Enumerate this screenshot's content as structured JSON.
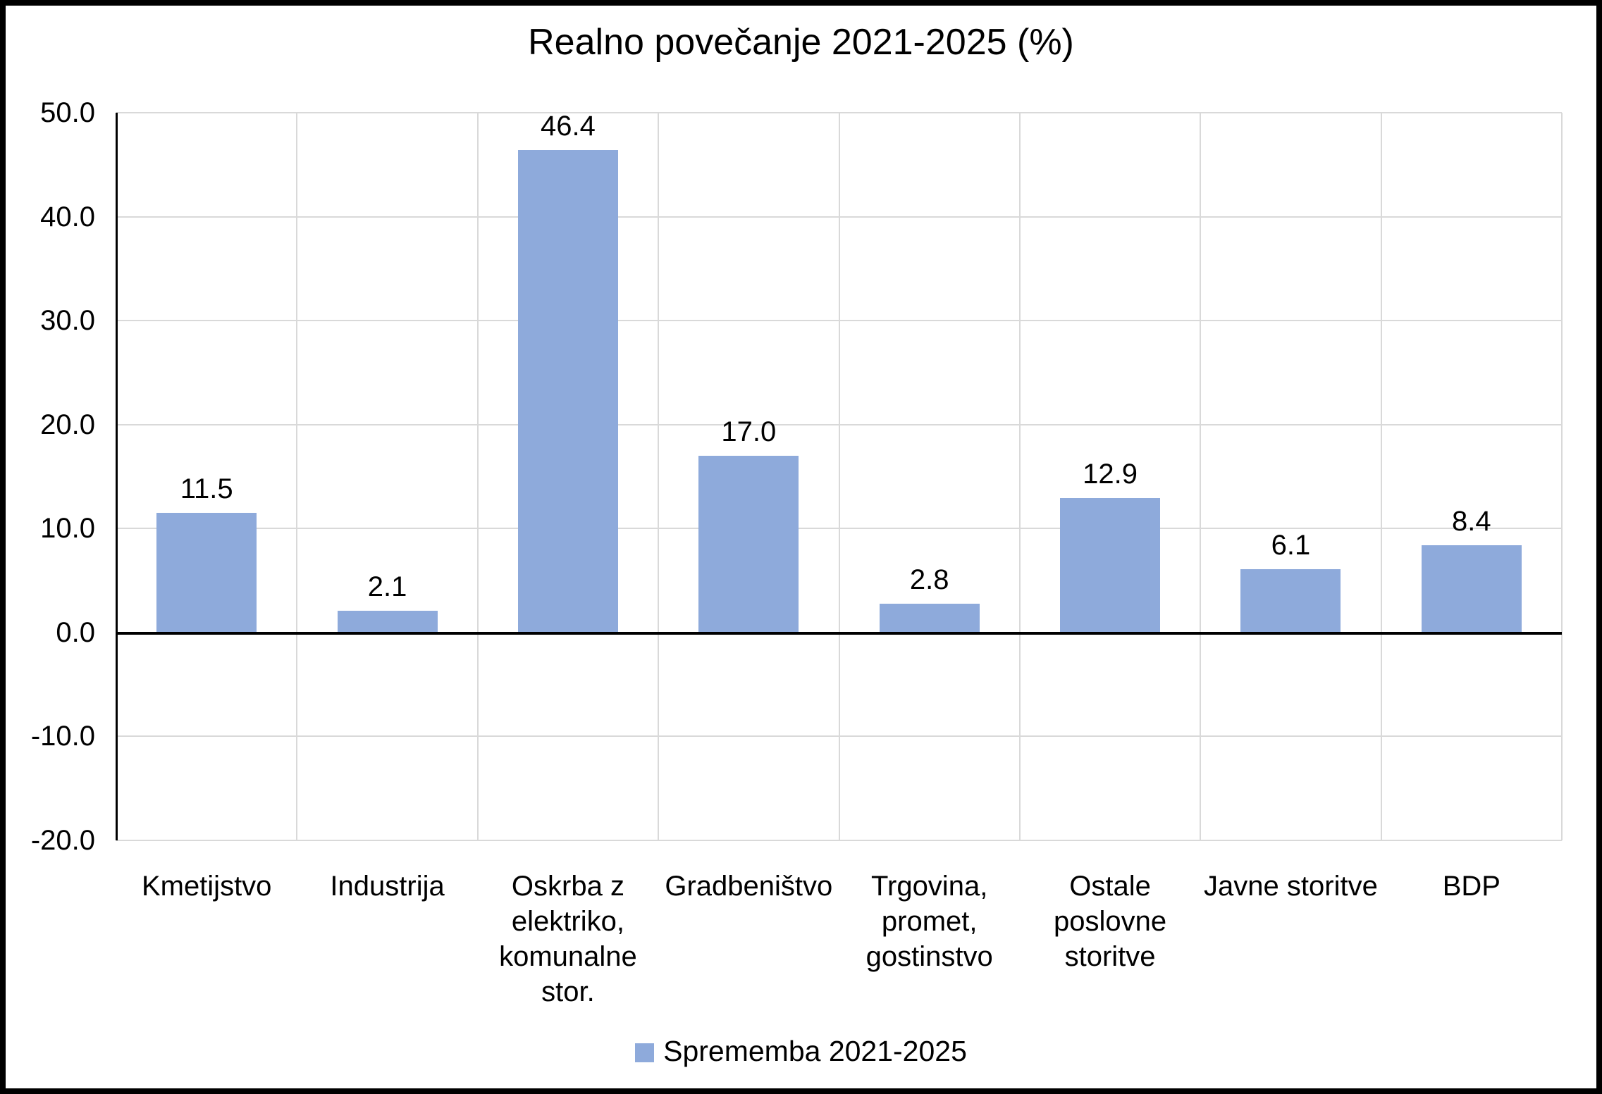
{
  "chart_data": {
    "type": "bar",
    "title": "Realno povečanje 2021-2025 (%)",
    "categories": [
      "Kmetijstvo",
      "Industrija",
      "Oskrba z elektriko, komunalne stor.",
      "Gradbeništvo",
      "Trgovina, promet, gostinstvo",
      "Ostale poslovne storitve",
      "Javne storitve",
      "BDP"
    ],
    "category_label_lines": [
      [
        "Kmetijstvo"
      ],
      [
        "Industrija"
      ],
      [
        "Oskrba z",
        "elektriko,",
        "komunalne",
        "stor."
      ],
      [
        "Gradbeništvo"
      ],
      [
        "Trgovina,",
        "promet,",
        "gostinstvo"
      ],
      [
        "Ostale",
        "poslovne",
        "storitve"
      ],
      [
        "Javne storitve"
      ],
      [
        "BDP"
      ]
    ],
    "series": [
      {
        "name": "Sprememba 2021-2025",
        "values": [
          11.5,
          2.1,
          46.4,
          17.0,
          2.8,
          12.9,
          6.1,
          8.4
        ]
      }
    ],
    "value_labels": [
      "11.5",
      "2.1",
      "46.4",
      "17.0",
      "2.8",
      "12.9",
      "6.1",
      "8.4"
    ],
    "xlabel": "",
    "ylabel": "",
    "ylim": [
      -20,
      50
    ],
    "ytick_values": [
      50,
      40,
      30,
      20,
      10,
      0,
      -10,
      -20
    ],
    "ytick_labels": [
      "50.0",
      "40.0",
      "30.0",
      "20.0",
      "10.0",
      "0.0",
      "-10.0",
      "-20.0"
    ],
    "grid": true,
    "legend_position": "bottom",
    "colors": {
      "bar_fill": "#8EAADB",
      "gridline": "#D9D9D9",
      "axis": "#000000",
      "text": "#000000",
      "background": "#FFFFFF",
      "frame": "#000000"
    }
  }
}
